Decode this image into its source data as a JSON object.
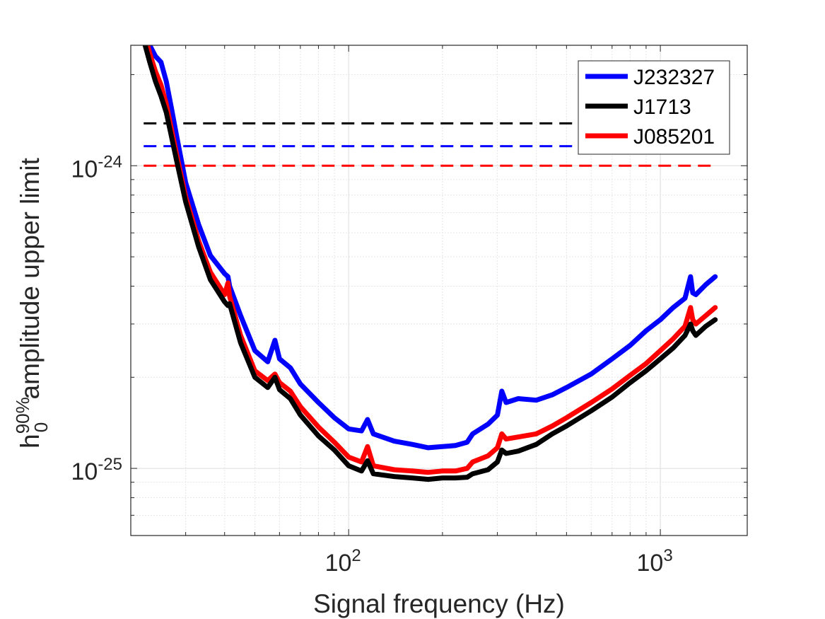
{
  "chart_data": {
    "type": "line",
    "xscale": "log",
    "yscale": "log",
    "xlim": [
      20,
      1900
    ],
    "ylim": [
      6e-26,
      2.5e-24
    ],
    "grid": true,
    "legend_position": "top-right",
    "xlabel": "Signal frequency (Hz)",
    "ylabel_base": "h",
    "ylabel_superscript": "90%",
    "ylabel_subscript": "0",
    "ylabel_rest": " amplitude upper limit",
    "xticks": [
      {
        "value": 100,
        "base": "10",
        "exp": "2"
      },
      {
        "value": 1000,
        "base": "10",
        "exp": "3"
      }
    ],
    "yticks": [
      {
        "value": 1e-25,
        "base": "10",
        "exp": "-25"
      },
      {
        "value": 1e-24,
        "base": "10",
        "exp": "-24"
      }
    ],
    "series": [
      {
        "name": "J232327",
        "color": "#0000ff",
        "x": [
          22,
          23,
          24,
          25,
          26,
          27,
          28,
          30,
          33,
          36,
          40,
          41,
          41.5,
          45,
          50,
          55,
          58,
          60,
          65,
          70,
          80,
          90,
          100,
          110,
          115,
          120,
          140,
          160,
          180,
          200,
          220,
          240,
          250,
          280,
          300,
          310,
          320,
          350,
          400,
          450,
          500,
          600,
          700,
          800,
          900,
          1000,
          1100,
          1200,
          1250,
          1270,
          1300,
          1400,
          1500
        ],
        "y": [
          2.9e-24,
          2.5e-24,
          2.3e-24,
          2.2e-24,
          1.9e-24,
          1.55e-24,
          1.27e-24,
          8.8e-25,
          6.4e-25,
          5.05e-25,
          4.4e-25,
          4.3e-25,
          4e-25,
          3.2e-25,
          2.45e-25,
          2.25e-25,
          2.65e-25,
          2.3e-25,
          2.15e-25,
          1.9e-25,
          1.65e-25,
          1.47e-25,
          1.35e-25,
          1.33e-25,
          1.45e-25,
          1.3e-25,
          1.23e-25,
          1.2e-25,
          1.17e-25,
          1.18e-25,
          1.19e-25,
          1.22e-25,
          1.3e-25,
          1.4e-25,
          1.5e-25,
          1.8e-25,
          1.65e-25,
          1.7e-25,
          1.68e-25,
          1.75e-25,
          1.85e-25,
          2.05e-25,
          2.3e-25,
          2.55e-25,
          2.85e-25,
          3.1e-25,
          3.4e-25,
          3.65e-25,
          4.3e-25,
          3.8e-25,
          3.75e-25,
          4.05e-25,
          4.3e-25
        ]
      },
      {
        "name": "J1713",
        "color": "#000000",
        "x": [
          22,
          23,
          24,
          25,
          26,
          27,
          28,
          30,
          33,
          36,
          40,
          41,
          41.5,
          45,
          50,
          55,
          58,
          60,
          65,
          70,
          80,
          90,
          100,
          110,
          115,
          120,
          140,
          160,
          180,
          200,
          220,
          240,
          250,
          280,
          300,
          310,
          320,
          350,
          400,
          450,
          500,
          600,
          700,
          800,
          900,
          1000,
          1100,
          1200,
          1250,
          1270,
          1300,
          1400,
          1500
        ],
        "y": [
          2.6e-24,
          2.2e-24,
          1.9e-24,
          1.7e-24,
          1.5e-24,
          1.25e-24,
          1.05e-24,
          7.6e-25,
          5.4e-25,
          4.2e-25,
          3.55e-25,
          3.45e-25,
          3.5e-25,
          2.6e-25,
          2e-25,
          1.85e-25,
          2e-25,
          1.82e-25,
          1.7e-25,
          1.5e-25,
          1.28e-25,
          1.15e-25,
          1.02e-25,
          9.8e-26,
          1.06e-25,
          9.6e-26,
          9.4e-26,
          9.3e-26,
          9.2e-26,
          9.3e-26,
          9.3e-26,
          9.35e-26,
          9.6e-26,
          9.9e-26,
          1.05e-25,
          1.15e-25,
          1.12e-25,
          1.14e-25,
          1.2e-25,
          1.3e-25,
          1.38e-25,
          1.55e-25,
          1.72e-25,
          1.92e-25,
          2.1e-25,
          2.3e-25,
          2.5e-25,
          2.75e-25,
          3e-25,
          2.85e-25,
          2.75e-25,
          2.95e-25,
          3.1e-25
        ]
      },
      {
        "name": "J085201",
        "color": "#ff0000",
        "x": [
          22,
          23,
          24,
          25,
          26,
          27,
          28,
          30,
          33,
          36,
          40,
          41,
          41.5,
          45,
          50,
          55,
          58,
          60,
          65,
          70,
          80,
          90,
          100,
          110,
          115,
          120,
          140,
          160,
          180,
          200,
          220,
          240,
          250,
          280,
          300,
          310,
          320,
          350,
          400,
          450,
          500,
          600,
          700,
          800,
          900,
          1000,
          1100,
          1200,
          1250,
          1270,
          1300,
          1400,
          1500
        ],
        "y": [
          2.8e-24,
          2.35e-24,
          2.05e-24,
          1.85e-24,
          1.6e-24,
          1.32e-24,
          1.1e-24,
          7.9e-25,
          5.65e-25,
          4.45e-25,
          3.75e-25,
          4.1e-25,
          3.7e-25,
          2.75e-25,
          2.1e-25,
          1.95e-25,
          2.05e-25,
          1.92e-25,
          1.8e-25,
          1.6e-25,
          1.37e-25,
          1.22e-25,
          1.09e-25,
          1.05e-25,
          1.18e-25,
          1.02e-25,
          9.9e-26,
          9.8e-26,
          9.7e-26,
          9.8e-26,
          9.8e-26,
          1e-25,
          1.05e-25,
          1.1e-25,
          1.17e-25,
          1.3e-25,
          1.25e-25,
          1.27e-25,
          1.3e-25,
          1.38e-25,
          1.47e-25,
          1.65e-25,
          1.83e-25,
          2.03e-25,
          2.22e-25,
          2.45e-25,
          2.68e-25,
          2.95e-25,
          3.4e-25,
          3.1e-25,
          3e-25,
          3.2e-25,
          3.4e-25
        ]
      }
    ],
    "reference_lines": [
      {
        "series": "J1713",
        "color": "#000000",
        "y": 1.38e-24,
        "x_start": 22,
        "x_end": 1500,
        "style": "dashed"
      },
      {
        "series": "J232327",
        "color": "#0000ff",
        "y": 1.16e-24,
        "x_start": 22,
        "x_end": 1500,
        "style": "dashed"
      },
      {
        "series": "J085201",
        "color": "#ff0000",
        "y": 1e-24,
        "x_start": 22,
        "x_end": 1500,
        "style": "dashed"
      }
    ]
  }
}
